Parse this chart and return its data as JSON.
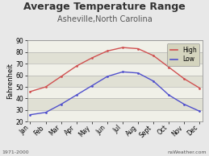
{
  "title": "Average Temperature Range",
  "subtitle": "Asheville,North Carolina",
  "ylabel": "Fahrenheit",
  "months": [
    "Jan",
    "Feb",
    "Mar",
    "Apr",
    "May",
    "Jun",
    "Jul",
    "Aug",
    "Sept",
    "Oct",
    "Nov",
    "Dec"
  ],
  "high": [
    46,
    50,
    59,
    68,
    75,
    81,
    84,
    83,
    77,
    67,
    57,
    49
  ],
  "low": [
    26,
    28,
    35,
    43,
    51,
    59,
    63,
    62,
    55,
    43,
    35,
    29
  ],
  "ylim": [
    20,
    90
  ],
  "yticks": [
    20,
    30,
    40,
    50,
    60,
    70,
    80,
    90
  ],
  "high_color": "#d05050",
  "low_color": "#5050cc",
  "fig_bg": "#e8e8e8",
  "plot_bg": "#f5f5f0",
  "band_light": "#f0f0e8",
  "band_dark": "#e0e0d4",
  "legend_bg": "#d4d4be",
  "title_fontsize": 9,
  "subtitle_fontsize": 7,
  "label_fontsize": 6,
  "tick_fontsize": 5.5,
  "footnote_left": "1971-2000",
  "footnote_right": "nsWeather.com"
}
